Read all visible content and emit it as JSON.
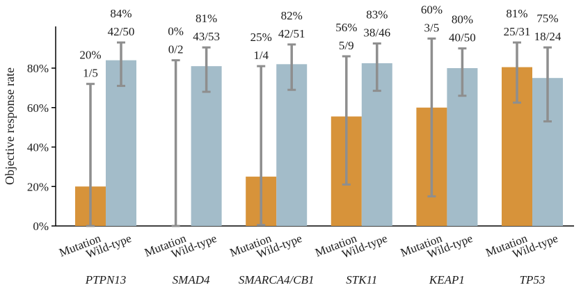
{
  "chart_data": {
    "type": "bar",
    "ylabel": "Objective response rate",
    "ylim": [
      0,
      100
    ],
    "yticks": [
      0,
      20,
      40,
      60,
      80
    ],
    "ytick_labels": [
      "0%",
      "20%",
      "40%",
      "60%",
      "80%"
    ],
    "series_labels": [
      "Mutation",
      "Wild-type"
    ],
    "colors": {
      "mutation": "#D7933A",
      "wildtype": "#A3BCC9",
      "errorbar": "#8E8E8E",
      "axis": "#000000"
    },
    "groups": [
      {
        "gene": "PTPN13",
        "mutation": {
          "value": 20,
          "ci": [
            0,
            72
          ],
          "pct_label": "20%",
          "frac_label": "1/5"
        },
        "wildtype": {
          "value": 84,
          "ci": [
            71,
            93
          ],
          "pct_label": "84%",
          "frac_label": "42/50"
        }
      },
      {
        "gene": "SMAD4",
        "mutation": {
          "value": 0,
          "ci": [
            0,
            84
          ],
          "pct_label": "0%",
          "frac_label": "0/2"
        },
        "wildtype": {
          "value": 81,
          "ci": [
            68,
            90.5
          ],
          "pct_label": "81%",
          "frac_label": "43/53"
        }
      },
      {
        "gene": "SMARCA4/CB1",
        "mutation": {
          "value": 25,
          "ci": [
            0.5,
            81
          ],
          "pct_label": "25%",
          "frac_label": "1/4"
        },
        "wildtype": {
          "value": 82,
          "ci": [
            69,
            92
          ],
          "pct_label": "82%",
          "frac_label": "42/51"
        }
      },
      {
        "gene": "STK11",
        "mutation": {
          "value": 55.5,
          "ci": [
            21,
            86
          ],
          "pct_label": "56%",
          "frac_label": "5/9"
        },
        "wildtype": {
          "value": 82.5,
          "ci": [
            68.5,
            92.5
          ],
          "pct_label": "83%",
          "frac_label": "38/46"
        }
      },
      {
        "gene": "KEAP1",
        "mutation": {
          "value": 60,
          "ci": [
            15,
            95
          ],
          "pct_label": "60%",
          "frac_label": "3/5"
        },
        "wildtype": {
          "value": 80,
          "ci": [
            66,
            90
          ],
          "pct_label": "80%",
          "frac_label": "40/50"
        }
      },
      {
        "gene": "TP53",
        "mutation": {
          "value": 80.5,
          "ci": [
            62.5,
            93
          ],
          "pct_label": "81%",
          "frac_label": "25/31"
        },
        "wildtype": {
          "value": 75,
          "ci": [
            53,
            90.5
          ],
          "pct_label": "75%",
          "frac_label": "18/24"
        }
      }
    ]
  }
}
